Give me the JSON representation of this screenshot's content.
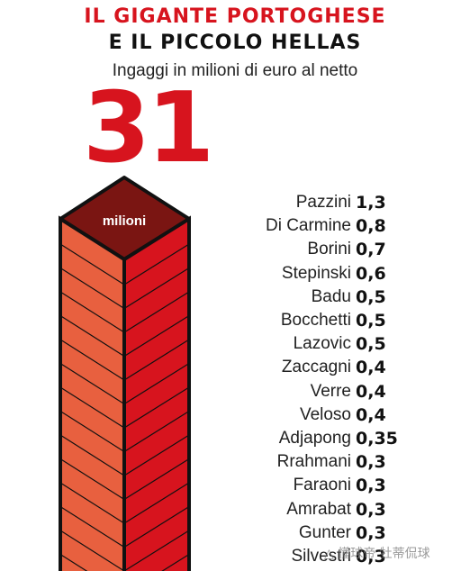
{
  "title_line1": "IL GIGANTE PORTOGHESE",
  "title_line2": "E IL PICCOLO HELLAS",
  "subtitle": "Ingaggi in milioni di euro al netto",
  "watermark": "△ 懂球帝 牡蒂侃球",
  "chart_data": {
    "type": "bar",
    "tower": {
      "value": "31",
      "unit_label": "milioni"
    },
    "categories": [
      "Pazzini",
      "Di Carmine",
      "Borini",
      "Stepinski",
      "Badu",
      "Bocchetti",
      "Lazovic",
      "Zaccagni",
      "Verre",
      "Veloso",
      "Adjapong",
      "Rrahmani",
      "Faraoni",
      "Amrabat",
      "Gunter",
      "Silvestri"
    ],
    "values": [
      1.3,
      0.8,
      0.7,
      0.6,
      0.5,
      0.5,
      0.5,
      0.4,
      0.4,
      0.4,
      0.35,
      0.3,
      0.3,
      0.3,
      0.3,
      0.3
    ],
    "value_labels": [
      "1,3",
      "0,8",
      "0,7",
      "0,6",
      "0,5",
      "0,5",
      "0,5",
      "0,4",
      "0,4",
      "0,4",
      "0,35",
      "0,3",
      "0,3",
      "0,3",
      "0,3",
      "0,3"
    ],
    "colors": {
      "accent": "#d7141e",
      "tower_left": "#e8603f",
      "tower_right": "#d7141e",
      "tower_top": "#7a1512",
      "outline": "#111111"
    }
  }
}
